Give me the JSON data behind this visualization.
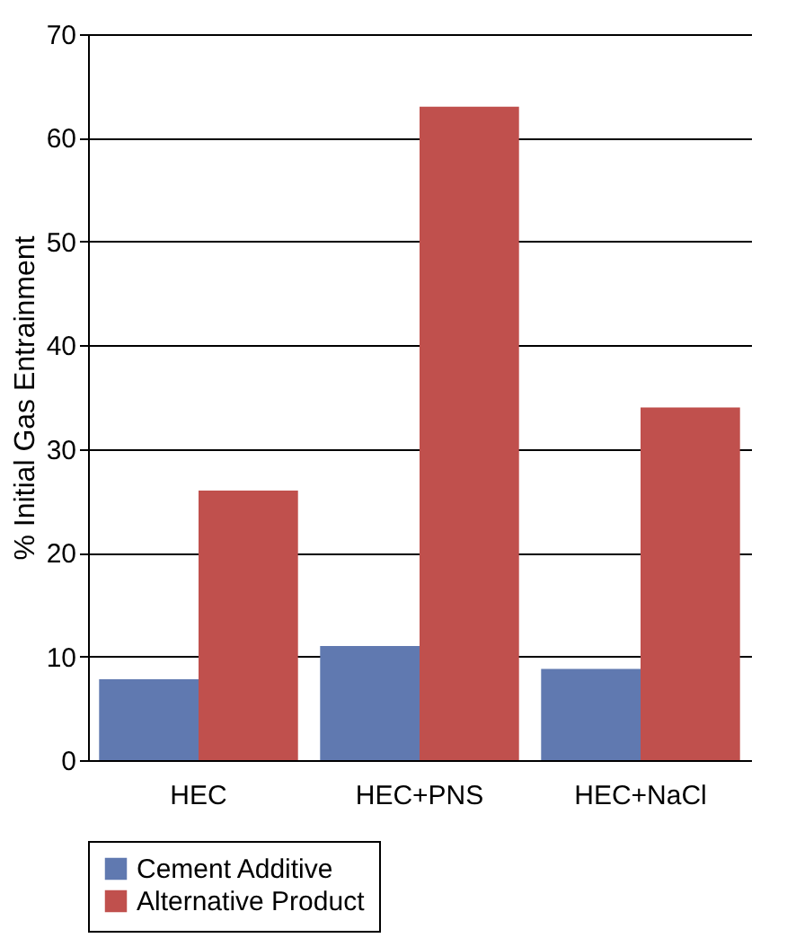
{
  "chart_data": {
    "type": "bar",
    "ylabel": "% Initial Gas Entrainment",
    "categories": [
      "HEC",
      "HEC+PNS",
      "HEC+NaCl"
    ],
    "series": [
      {
        "name": "Cement Additive",
        "color": "#6079b0",
        "values": [
          7.8,
          11,
          8.8
        ]
      },
      {
        "name": "Alternative Product",
        "color": "#c0504d",
        "values": [
          26,
          63,
          34
        ]
      }
    ],
    "ylim": [
      0,
      70
    ],
    "yticks": [
      0,
      10,
      20,
      30,
      40,
      50,
      60,
      70
    ],
    "grid": "y",
    "legend": "bottom"
  }
}
